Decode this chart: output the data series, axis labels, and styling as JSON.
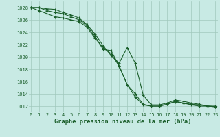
{
  "background_color": "#c8eae4",
  "plot_bg_color": "#c8eae4",
  "grid_color": "#a0c8bc",
  "line_color": "#1a5e2a",
  "ylabel_values": [
    1012,
    1014,
    1016,
    1018,
    1020,
    1022,
    1024,
    1026,
    1028
  ],
  "xlabel_values": [
    0,
    1,
    2,
    3,
    4,
    5,
    6,
    7,
    8,
    9,
    10,
    11,
    12,
    13,
    14,
    15,
    16,
    17,
    18,
    19,
    20,
    21,
    22,
    23
  ],
  "xlabel_label": "Graphe pression niveau de la mer (hPa)",
  "ylim": [
    1011.0,
    1029.0
  ],
  "xlim": [
    -0.3,
    23.3
  ],
  "series": [
    [
      1028,
      1028,
      1027.8,
      1027.7,
      1027.2,
      1026.8,
      1026.3,
      1025.2,
      1023.7,
      1021.8,
      1020.2,
      1019.0,
      1021.5,
      1019.0,
      1013.8,
      1012.2,
      1012.2,
      1012.5,
      1013.0,
      1012.8,
      1012.5,
      1012.3,
      1012.0,
      1012.0
    ],
    [
      1028,
      1028,
      1027.5,
      1027.2,
      1027.0,
      1026.5,
      1026.0,
      1025.0,
      1023.3,
      1021.2,
      1021.0,
      1018.5,
      1015.5,
      1014.0,
      1012.3,
      1012.0,
      1012.0,
      1012.3,
      1012.7,
      1012.5,
      1012.3,
      1012.2,
      1012.0,
      1011.9
    ],
    [
      1028,
      1027.5,
      1027.0,
      1026.5,
      1026.3,
      1026.0,
      1025.7,
      1024.8,
      1023.0,
      1021.5,
      1020.5,
      1018.5,
      1015.5,
      1013.5,
      1012.2,
      1012.0,
      1012.0,
      1012.3,
      1012.8,
      1012.5,
      1012.2,
      1012.0,
      1012.0,
      1011.9
    ]
  ]
}
